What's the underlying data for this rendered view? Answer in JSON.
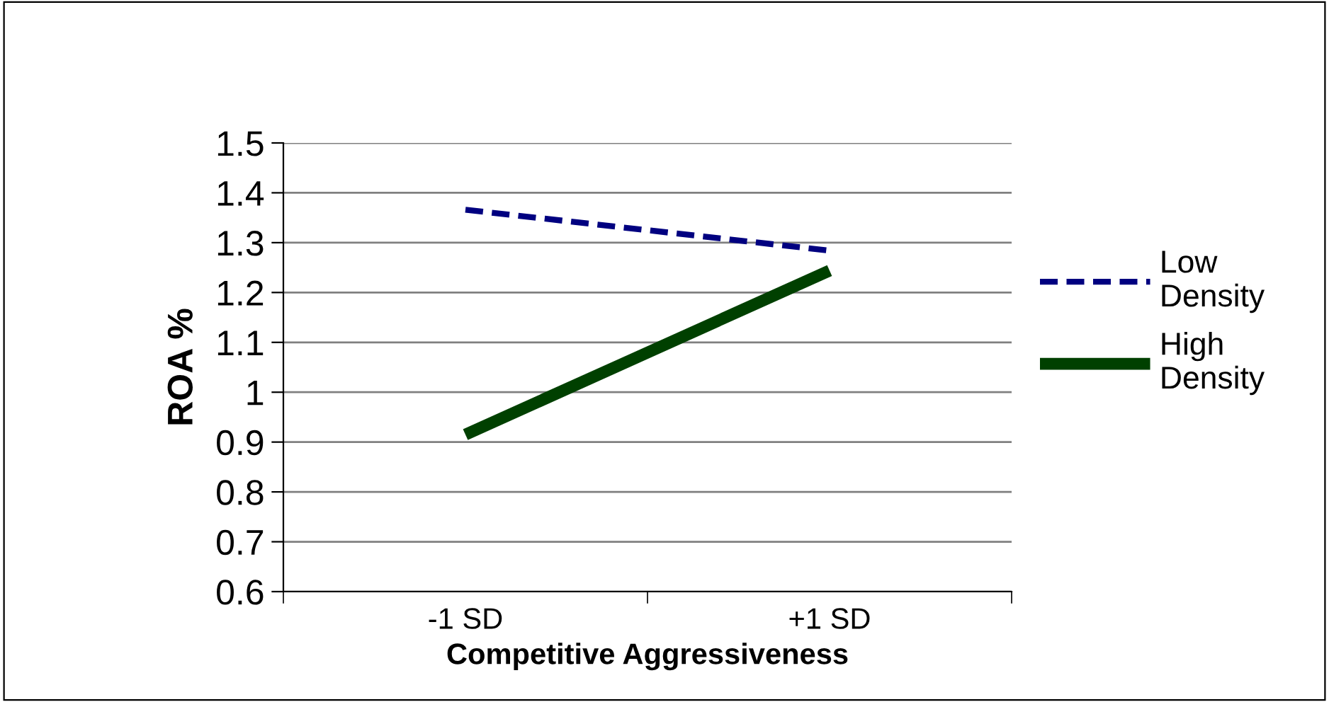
{
  "chart_data": {
    "type": "line",
    "xlabel": "Competitive Aggressiveness",
    "ylabel": "ROA %",
    "categories": [
      "-1 SD",
      "+1 SD"
    ],
    "series": [
      {
        "name": "Low Density",
        "color": "#000080",
        "values": [
          1.366,
          1.284
        ],
        "line_style": "dashed"
      },
      {
        "name": "High Density",
        "color": "#004000",
        "values": [
          0.915,
          1.244
        ],
        "line_style": "solid"
      }
    ],
    "ylim": [
      0.6,
      1.5
    ],
    "yticks": [
      0.6,
      0.7,
      0.8,
      0.9,
      1,
      1.1,
      1.2,
      1.3,
      1.4,
      1.5
    ],
    "grid": "y",
    "legend": "right",
    "marker": "none"
  }
}
